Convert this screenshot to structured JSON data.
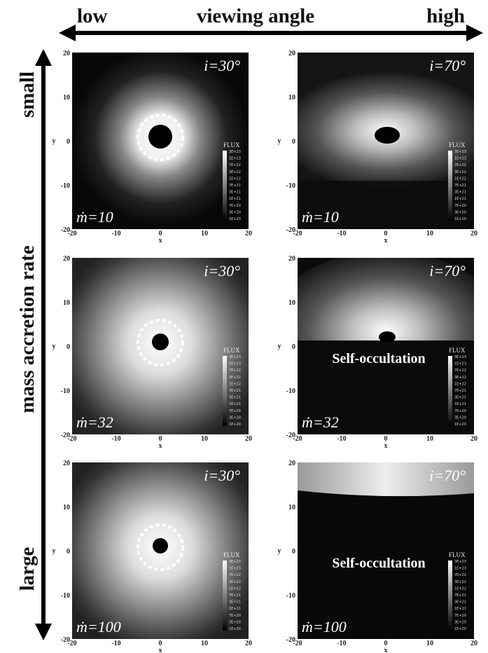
{
  "header": {
    "left": "low",
    "center": "viewing angle",
    "right": "high"
  },
  "side": {
    "top": "small",
    "center": "mass accretion rate",
    "bottom": "large"
  },
  "axes": {
    "ticks": [
      -20,
      -10,
      0,
      10,
      20
    ],
    "x_label": "x",
    "y_label": "y"
  },
  "colorbar": {
    "title": "FLUX",
    "labels": [
      "3E+23",
      "1E+23",
      "7E+22",
      "3E+22",
      "1E+22",
      "7E+21",
      "3E+21",
      "1E+21",
      "7E+20",
      "3E+20",
      "1E+20"
    ]
  },
  "panels": [
    {
      "inclination": "i=30°",
      "accretion": "ṁ=10"
    },
    {
      "inclination": "i=70°",
      "accretion": "ṁ=10"
    },
    {
      "inclination": "i=30°",
      "accretion": "ṁ=32"
    },
    {
      "inclination": "i=70°",
      "accretion": "ṁ=32",
      "note": "Self-occultation"
    },
    {
      "inclination": "i=30°",
      "accretion": "ṁ=100"
    },
    {
      "inclination": "i=70°",
      "accretion": "ṁ=100",
      "note": "Self-occultation"
    }
  ]
}
